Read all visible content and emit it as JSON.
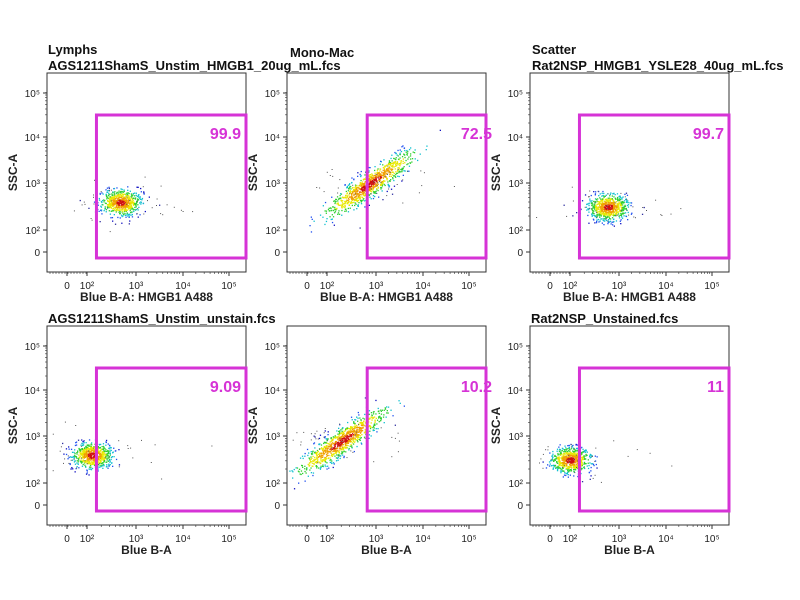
{
  "chart_data": [
    {
      "type": "scatter",
      "population": "Lymphs",
      "file": "AGS1211ShamS_Unstim_HMGB1_20ug_mL.fcs",
      "xlabel": "Blue B-A: HMGB1 A488",
      "ylabel": "SSC-A",
      "gate_percent": "99.9",
      "gate_x_min_log": 2.2,
      "cluster": {
        "x_log": 2.7,
        "y_log": 2.6,
        "shape": "round"
      }
    },
    {
      "type": "scatter",
      "population": "Mono-Mac",
      "file": "",
      "xlabel": "Blue B-A: HMGB1 A488",
      "ylabel": "SSC-A",
      "gate_percent": "72.5",
      "gate_x_min_log": 2.85,
      "cluster": {
        "x_log": 2.9,
        "y_log": 3.0,
        "shape": "diagonal"
      }
    },
    {
      "type": "scatter",
      "population": "Scatter",
      "file": "Rat2NSP_HMGB1_YSLE28_40ug_mL.fcs",
      "xlabel": "Blue B-A: HMGB1 A488",
      "ylabel": "SSC-A",
      "gate_percent": "99.7",
      "gate_x_min_log": 2.2,
      "cluster": {
        "x_log": 2.8,
        "y_log": 2.5,
        "shape": "round"
      }
    },
    {
      "type": "scatter",
      "population": "",
      "file": "AGS1211ShamS_Unstim_unstain.fcs",
      "xlabel": "Blue B-A",
      "ylabel": "SSC-A",
      "gate_percent": "9.09",
      "gate_x_min_log": 2.2,
      "cluster": {
        "x_log": 2.1,
        "y_log": 2.6,
        "shape": "round"
      }
    },
    {
      "type": "scatter",
      "population": "",
      "file": "",
      "xlabel": "Blue B-A",
      "ylabel": "SSC-A",
      "gate_percent": "10.2",
      "gate_x_min_log": 2.85,
      "cluster": {
        "x_log": 2.3,
        "y_log": 2.9,
        "shape": "diagonal"
      }
    },
    {
      "type": "scatter",
      "population": "",
      "file": "Rat2NSP_Unstained.fcs",
      "xlabel": "Blue B-A",
      "ylabel": "SSC-A",
      "gate_percent": "11",
      "gate_x_min_log": 2.2,
      "cluster": {
        "x_log": 2.0,
        "y_log": 2.5,
        "shape": "round"
      }
    }
  ],
  "axes": {
    "x_ticks": [
      "0",
      "10²",
      "10³",
      "10⁴",
      "10⁵"
    ],
    "y_ticks": [
      "10⁵",
      "10⁴",
      "10³",
      "10²",
      "0"
    ]
  },
  "colors": {
    "gate": "#d633d6",
    "axis": "#222222"
  }
}
